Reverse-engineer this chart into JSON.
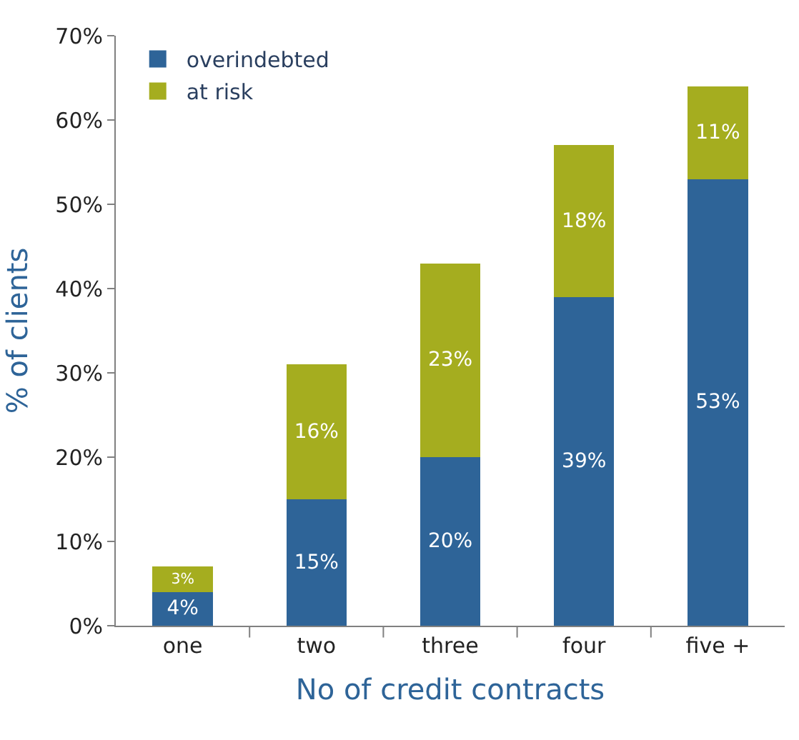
{
  "chart_data": {
    "type": "bar",
    "stacked": true,
    "xlabel": "No of credit contracts",
    "ylabel": "% of clients",
    "categories": [
      "one",
      "two",
      "three",
      "four",
      "five +"
    ],
    "series": [
      {
        "name": "overindebted",
        "color": "#2e6498",
        "values": [
          4,
          15,
          20,
          39,
          53
        ],
        "value_labels": [
          "4%",
          "15%",
          "20%",
          "39%",
          "53%"
        ]
      },
      {
        "name": "at risk",
        "color": "#a5ad1f",
        "values": [
          3,
          16,
          23,
          18,
          11
        ],
        "value_labels": [
          "3%",
          "16%",
          "23%",
          "18%",
          "11%"
        ]
      }
    ],
    "ylim": [
      0,
      70
    ],
    "yticks": [
      {
        "value": 0,
        "label": "0%"
      },
      {
        "value": 10,
        "label": "10%"
      },
      {
        "value": 20,
        "label": "20%"
      },
      {
        "value": 30,
        "label": "30%"
      },
      {
        "value": 40,
        "label": "40%"
      },
      {
        "value": 50,
        "label": "50%"
      },
      {
        "value": 60,
        "label": "60%"
      },
      {
        "value": 70,
        "label": "70%"
      }
    ],
    "legend": "top left"
  }
}
